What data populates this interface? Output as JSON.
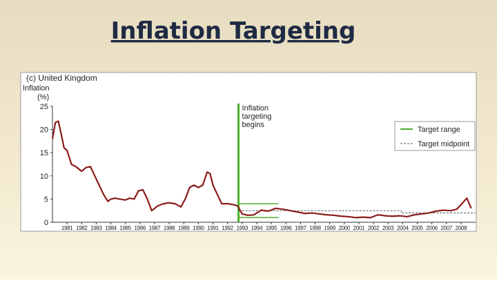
{
  "slide_title": "Inflation Targeting",
  "chart_data": {
    "type": "line",
    "title": "(c) United Kingdom",
    "y_label": [
      "Inflation",
      "(%)"
    ],
    "x": [
      1980,
      1980.2,
      1980.4,
      1980.6,
      1980.8,
      1981,
      1981.3,
      1981.6,
      1982,
      1982.3,
      1982.6,
      1982.9,
      1983.2,
      1983.5,
      1983.8,
      1984,
      1984.3,
      1984.6,
      1985,
      1985.3,
      1985.6,
      1985.9,
      1986.2,
      1986.5,
      1986.8,
      1987.2,
      1987.6,
      1988,
      1988.4,
      1988.8,
      1989.1,
      1989.4,
      1989.7,
      1990,
      1990.3,
      1990.6,
      1990.8,
      1991,
      1991.3,
      1991.6,
      1992,
      1992.4,
      1992.7,
      1993,
      1993.4,
      1993.8,
      1994.3,
      1994.8,
      1995.3,
      1995.8,
      1996.3,
      1996.8,
      1997.3,
      1997.8,
      1998.3,
      1998.8,
      1999.3,
      1999.8,
      2000.3,
      2000.8,
      2001.3,
      2001.8,
      2002.3,
      2002.8,
      2003.3,
      2003.8,
      2004.3,
      2004.8,
      2005.3,
      2005.8,
      2006.3,
      2006.8,
      2007.3,
      2007.7,
      2008,
      2008.4,
      2008.7
    ],
    "values": [
      18,
      21.5,
      21.8,
      19,
      16,
      15.5,
      12.5,
      12,
      11,
      11.8,
      12,
      10,
      8,
      6,
      4.5,
      5,
      5.2,
      5,
      4.8,
      5.2,
      5,
      6.8,
      7,
      5,
      2.5,
      3.5,
      4,
      4.2,
      4,
      3.3,
      5,
      7.5,
      8,
      7.5,
      8,
      10.8,
      10.5,
      8,
      6,
      4,
      4,
      3.8,
      3.5,
      1.8,
      1.5,
      1.6,
      2.6,
      2.4,
      3,
      2.8,
      2.5,
      2.2,
      1.9,
      2,
      1.8,
      1.6,
      1.5,
      1.3,
      1.2,
      1,
      1.1,
      1,
      1.6,
      1.4,
      1.3,
      1.4,
      1.2,
      1.6,
      1.8,
      2,
      2.4,
      2.6,
      2.5,
      2.8,
      3.8,
      5.2,
      3
    ],
    "color": "#8b1a1a",
    "xlim": [
      1980,
      2009
    ],
    "ylim": [
      0,
      25
    ],
    "xticks": [
      1981,
      1982,
      1983,
      1984,
      1985,
      1986,
      1987,
      1988,
      1989,
      1990,
      1991,
      1992,
      1993,
      1994,
      1995,
      1996,
      1997,
      1998,
      1999,
      2000,
      2001,
      2002,
      2003,
      2004,
      2005,
      2006,
      2007,
      2008
    ],
    "yticks": [
      0,
      5,
      10,
      15,
      20,
      25
    ],
    "annotation": {
      "text": [
        "Inflation",
        "targeting",
        "begins"
      ],
      "x": 1992.75,
      "color": "#4caf2c"
    },
    "target_range": {
      "name": "Target range",
      "color": "#4caf2c",
      "x": [
        1992.75,
        1995.5
      ],
      "values": [
        1,
        4
      ]
    },
    "target_midpoint": {
      "name": "Target midpoint",
      "color": "#555555",
      "x": [
        1992.75,
        2003.9,
        2003.9,
        2009
      ],
      "values": [
        2.5,
        2.5,
        2,
        2
      ]
    }
  }
}
